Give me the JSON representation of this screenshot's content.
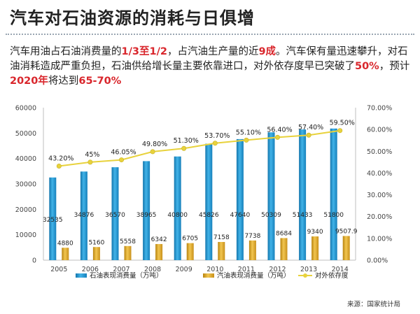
{
  "header": {
    "title": "汽车对石油资源的消耗与日俱增"
  },
  "description": {
    "t1": "汽车用油占石油消费量的",
    "h1": "1/3至1/2",
    "t2": "，占汽油生产量的近",
    "h2": "9成",
    "t3": "。汽车保有量迅速攀升，对石油消耗造成严重负担，石油供给增长量主要依靠进口，对外依存度早已突破了",
    "h3": "50%",
    "t4": "，预计",
    "h4": "2020年",
    "t5": "将达到",
    "h5": "65-70%"
  },
  "chart_data": {
    "type": "bar",
    "categories": [
      "2005",
      "2006",
      "2007",
      "2008",
      "2009",
      "2010",
      "2011",
      "2012",
      "2013",
      "2014"
    ],
    "series": [
      {
        "name": "石油表现消费量（万吨）",
        "kind": "bar",
        "axis": "left",
        "color": "#1f8fc9",
        "values": [
          32535,
          34876,
          36570,
          38965,
          40800,
          45826,
          47640,
          50309,
          51433,
          51800
        ],
        "labels": [
          "32535",
          "34876",
          "36570",
          "38965",
          "40800",
          "45826",
          "47640",
          "50309",
          "51433",
          "51800"
        ]
      },
      {
        "name": "汽油表现消费量（万吨）",
        "kind": "bar",
        "axis": "left",
        "color": "#e0a81c",
        "values": [
          4880,
          5160,
          5558,
          6342,
          6705,
          7158,
          7738,
          8684,
          9340,
          9507.9
        ],
        "labels": [
          "4880",
          "5160",
          "5558",
          "6342",
          "6705",
          "7158",
          "7738",
          "8684",
          "9340",
          "9507.9"
        ]
      },
      {
        "name": "对外依存度",
        "kind": "line",
        "axis": "right",
        "color": "#e8d23c",
        "values": [
          43.2,
          45,
          46.05,
          49.8,
          51.3,
          53.7,
          55.1,
          56.4,
          57.4,
          59.5
        ],
        "labels": [
          "43.20%",
          "45%",
          "46.05%",
          "49.80%",
          "51.30%",
          "53.70%",
          "55.10%",
          "56.40%",
          "57.40%",
          "59.50%"
        ]
      }
    ],
    "ylim": [
      0,
      60000
    ],
    "y_ticks": [
      "0",
      "10000",
      "20000",
      "30000",
      "40000",
      "50000",
      "60000"
    ],
    "y2lim": [
      0,
      70
    ],
    "y2_ticks": [
      "0.00%",
      "10.00%",
      "20.00%",
      "30.00%",
      "40.00%",
      "50.00%",
      "60.00%",
      "70.00%"
    ],
    "grid": false,
    "legend": "bottom",
    "title": "",
    "xlabel": "",
    "ylabel": ""
  },
  "source": "来源：国家统计局"
}
